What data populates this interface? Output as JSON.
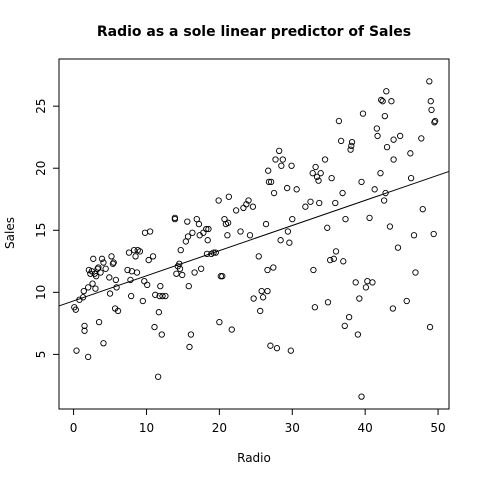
{
  "chart_data": {
    "type": "scatter",
    "title": "Radio as a sole linear predictor of Sales",
    "xlabel": "Radio",
    "ylabel": "Sales",
    "xlim": [
      -2,
      51.5
    ],
    "ylim": [
      0.6,
      28.8
    ],
    "xticks": [
      0,
      10,
      20,
      30,
      40,
      50
    ],
    "yticks": [
      5,
      10,
      15,
      20,
      25
    ],
    "grid": false,
    "fit_line": {
      "intercept": 9.31,
      "slope": 0.2025
    },
    "points": [
      [
        0.1,
        8.8
      ],
      [
        0.3,
        8.6
      ],
      [
        0.4,
        5.3
      ],
      [
        0.8,
        9.4
      ],
      [
        1.3,
        9.6
      ],
      [
        1.4,
        10.1
      ],
      [
        1.5,
        7.3
      ],
      [
        1.5,
        6.9
      ],
      [
        2.0,
        10.4
      ],
      [
        2.0,
        4.8
      ],
      [
        2.1,
        11.8
      ],
      [
        2.3,
        11.5
      ],
      [
        2.5,
        11.7
      ],
      [
        2.6,
        10.7
      ],
      [
        2.7,
        12.7
      ],
      [
        2.9,
        11.5
      ],
      [
        3.0,
        10.3
      ],
      [
        3.1,
        11.3
      ],
      [
        3.3,
        11.9
      ],
      [
        3.4,
        12.0
      ],
      [
        3.5,
        7.6
      ],
      [
        3.7,
        11.6
      ],
      [
        3.9,
        12.7
      ],
      [
        4.1,
        5.9
      ],
      [
        4.1,
        12.4
      ],
      [
        4.4,
        11.9
      ],
      [
        4.9,
        11.2
      ],
      [
        5.0,
        9.9
      ],
      [
        5.2,
        12.9
      ],
      [
        5.4,
        12.3
      ],
      [
        5.5,
        12.4
      ],
      [
        5.7,
        8.7
      ],
      [
        5.8,
        11.0
      ],
      [
        5.9,
        10.4
      ],
      [
        6.1,
        8.5
      ],
      [
        7.4,
        11.8
      ],
      [
        7.6,
        13.2
      ],
      [
        7.8,
        11.0
      ],
      [
        7.9,
        9.7
      ],
      [
        8.0,
        11.7
      ],
      [
        8.3,
        13.4
      ],
      [
        8.5,
        12.9
      ],
      [
        8.7,
        11.6
      ],
      [
        8.8,
        13.4
      ],
      [
        9.1,
        13.3
      ],
      [
        9.5,
        9.3
      ],
      [
        9.7,
        10.9
      ],
      [
        9.8,
        14.8
      ],
      [
        10.1,
        10.6
      ],
      [
        10.3,
        12.6
      ],
      [
        10.5,
        14.9
      ],
      [
        10.9,
        12.9
      ],
      [
        11.1,
        7.2
      ],
      [
        11.2,
        9.8
      ],
      [
        11.6,
        3.2
      ],
      [
        11.7,
        8.4
      ],
      [
        11.8,
        9.7
      ],
      [
        11.9,
        10.5
      ],
      [
        12.1,
        6.6
      ],
      [
        12.2,
        9.7
      ],
      [
        12.6,
        9.7
      ],
      [
        13.9,
        16.0
      ],
      [
        13.9,
        15.9
      ],
      [
        14.1,
        11.5
      ],
      [
        14.3,
        12.1
      ],
      [
        14.5,
        12.3
      ],
      [
        14.6,
        11.9
      ],
      [
        14.7,
        13.4
      ],
      [
        14.9,
        11.4
      ],
      [
        15.4,
        14.1
      ],
      [
        15.6,
        15.7
      ],
      [
        15.7,
        14.5
      ],
      [
        15.8,
        10.5
      ],
      [
        15.9,
        5.6
      ],
      [
        16.1,
        6.6
      ],
      [
        16.3,
        14.8
      ],
      [
        16.6,
        11.6
      ],
      [
        16.9,
        15.9
      ],
      [
        17.2,
        15.5
      ],
      [
        17.3,
        14.6
      ],
      [
        17.5,
        11.9
      ],
      [
        17.8,
        14.8
      ],
      [
        18.2,
        15.1
      ],
      [
        18.3,
        13.1
      ],
      [
        18.4,
        14.2
      ],
      [
        18.5,
        15.1
      ],
      [
        18.9,
        13.1
      ],
      [
        19.2,
        13.2
      ],
      [
        19.5,
        13.2
      ],
      [
        19.9,
        17.4
      ],
      [
        20.0,
        7.6
      ],
      [
        20.2,
        11.3
      ],
      [
        20.4,
        11.3
      ],
      [
        20.7,
        15.9
      ],
      [
        20.9,
        15.5
      ],
      [
        21.1,
        14.6
      ],
      [
        21.2,
        15.6
      ],
      [
        21.3,
        17.7
      ],
      [
        21.7,
        7.0
      ],
      [
        22.3,
        16.6
      ],
      [
        22.9,
        14.9
      ],
      [
        23.3,
        16.8
      ],
      [
        23.7,
        17.1
      ],
      [
        24.0,
        17.4
      ],
      [
        24.2,
        14.6
      ],
      [
        24.6,
        16.9
      ],
      [
        24.7,
        9.5
      ],
      [
        25.4,
        12.9
      ],
      [
        25.6,
        8.5
      ],
      [
        25.8,
        10.1
      ],
      [
        26.0,
        9.6
      ],
      [
        26.4,
        15.5
      ],
      [
        26.6,
        10.1
      ],
      [
        26.6,
        11.8
      ],
      [
        26.7,
        19.8
      ],
      [
        26.8,
        18.9
      ],
      [
        27.0,
        5.7
      ],
      [
        27.1,
        18.9
      ],
      [
        27.4,
        12.0
      ],
      [
        27.5,
        18.0
      ],
      [
        27.7,
        20.7
      ],
      [
        27.9,
        5.5
      ],
      [
        28.2,
        21.4
      ],
      [
        28.4,
        14.2
      ],
      [
        28.5,
        20.2
      ],
      [
        28.7,
        20.7
      ],
      [
        29.3,
        18.4
      ],
      [
        29.4,
        14.9
      ],
      [
        29.6,
        14.0
      ],
      [
        29.8,
        5.3
      ],
      [
        29.9,
        20.2
      ],
      [
        30.0,
        15.9
      ],
      [
        30.6,
        18.3
      ],
      [
        31.8,
        16.9
      ],
      [
        32.5,
        17.3
      ],
      [
        32.8,
        19.6
      ],
      [
        32.9,
        11.8
      ],
      [
        33.1,
        8.8
      ],
      [
        33.2,
        20.1
      ],
      [
        33.4,
        19.3
      ],
      [
        33.6,
        19.0
      ],
      [
        33.7,
        17.2
      ],
      [
        33.9,
        19.6
      ],
      [
        34.5,
        20.7
      ],
      [
        34.8,
        15.2
      ],
      [
        34.9,
        9.2
      ],
      [
        35.2,
        12.6
      ],
      [
        35.4,
        19.2
      ],
      [
        35.7,
        12.7
      ],
      [
        35.9,
        17.2
      ],
      [
        36.0,
        13.3
      ],
      [
        36.4,
        23.8
      ],
      [
        36.7,
        22.2
      ],
      [
        36.9,
        18.0
      ],
      [
        37.0,
        12.5
      ],
      [
        37.2,
        7.3
      ],
      [
        37.3,
        15.9
      ],
      [
        37.8,
        8.0
      ],
      [
        38.0,
        21.5
      ],
      [
        38.1,
        21.8
      ],
      [
        38.2,
        22.1
      ],
      [
        38.7,
        10.8
      ],
      [
        39.0,
        6.6
      ],
      [
        39.2,
        9.5
      ],
      [
        39.5,
        1.6
      ],
      [
        39.5,
        18.9
      ],
      [
        39.7,
        24.4
      ],
      [
        40.1,
        10.4
      ],
      [
        40.3,
        10.9
      ],
      [
        40.6,
        16.0
      ],
      [
        41.0,
        10.8
      ],
      [
        41.3,
        18.3
      ],
      [
        41.6,
        23.2
      ],
      [
        41.7,
        22.6
      ],
      [
        42.1,
        19.6
      ],
      [
        42.2,
        25.5
      ],
      [
        42.4,
        25.4
      ],
      [
        42.6,
        17.4
      ],
      [
        42.7,
        24.2
      ],
      [
        42.8,
        18.0
      ],
      [
        42.9,
        26.2
      ],
      [
        43.0,
        21.7
      ],
      [
        43.4,
        15.3
      ],
      [
        43.6,
        25.4
      ],
      [
        43.8,
        8.7
      ],
      [
        43.9,
        20.7
      ],
      [
        43.9,
        22.3
      ],
      [
        44.5,
        13.6
      ],
      [
        44.8,
        22.6
      ],
      [
        45.7,
        9.3
      ],
      [
        46.2,
        21.2
      ],
      [
        46.3,
        19.2
      ],
      [
        46.7,
        14.6
      ],
      [
        46.9,
        11.6
      ],
      [
        47.7,
        22.4
      ],
      [
        47.9,
        16.7
      ],
      [
        48.8,
        27.0
      ],
      [
        48.9,
        7.2
      ],
      [
        49.0,
        25.4
      ],
      [
        49.1,
        24.7
      ],
      [
        49.4,
        14.7
      ],
      [
        49.5,
        23.7
      ],
      [
        49.6,
        23.8
      ]
    ]
  }
}
